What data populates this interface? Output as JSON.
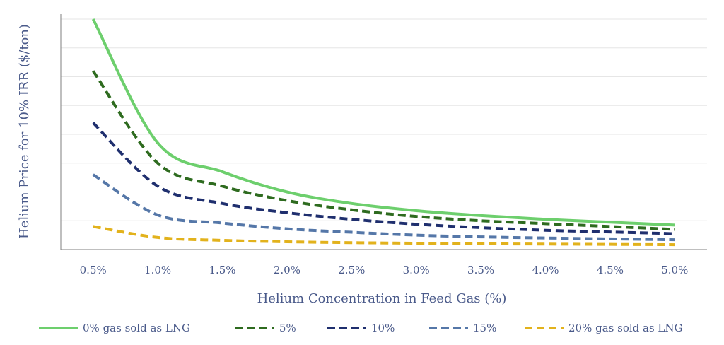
{
  "chart_data": {
    "type": "line",
    "title": "",
    "xlabel": "Helium Concentration in Feed Gas (%)",
    "ylabel": "Helium Price for 10% IRR ($/ton)",
    "x": [
      0.5,
      1.0,
      1.5,
      2.0,
      2.5,
      3.0,
      3.5,
      4.0,
      4.5,
      5.0
    ],
    "x_tick_labels": [
      "0.5%",
      "1.0%",
      "1.5%",
      "2.0%",
      "2.5%",
      "3.0%",
      "3.5%",
      "4.0%",
      "4.5%",
      "5.0%"
    ],
    "xlim": [
      0.25,
      5.25
    ],
    "ylim": [
      0,
      8
    ],
    "y_tick_labels_shown": false,
    "grid": "horizontal",
    "legend_position": "bottom",
    "series": [
      {
        "name": "0% gas sold as LNG",
        "color": "#6dcf6d",
        "dash": "solid",
        "values": [
          8.0,
          3.7,
          2.7,
          2.0,
          1.6,
          1.35,
          1.18,
          1.05,
          0.95,
          0.85
        ]
      },
      {
        "name": "5%",
        "color": "#2e6b1f",
        "dash": "dashed",
        "values": [
          6.2,
          3.0,
          2.2,
          1.7,
          1.38,
          1.15,
          1.0,
          0.9,
          0.8,
          0.7
        ]
      },
      {
        "name": "10%",
        "color": "#1f2f6e",
        "dash": "dashed",
        "values": [
          4.4,
          2.2,
          1.6,
          1.28,
          1.05,
          0.88,
          0.76,
          0.67,
          0.61,
          0.55
        ]
      },
      {
        "name": "15%",
        "color": "#5577a8",
        "dash": "dashed",
        "values": [
          2.6,
          1.2,
          0.92,
          0.72,
          0.6,
          0.5,
          0.44,
          0.4,
          0.37,
          0.34
        ]
      },
      {
        "name": "20% gas sold as LNG",
        "color": "#e2b21c",
        "dash": "dashed",
        "values": [
          0.8,
          0.42,
          0.32,
          0.27,
          0.24,
          0.22,
          0.2,
          0.19,
          0.18,
          0.17
        ]
      }
    ]
  }
}
